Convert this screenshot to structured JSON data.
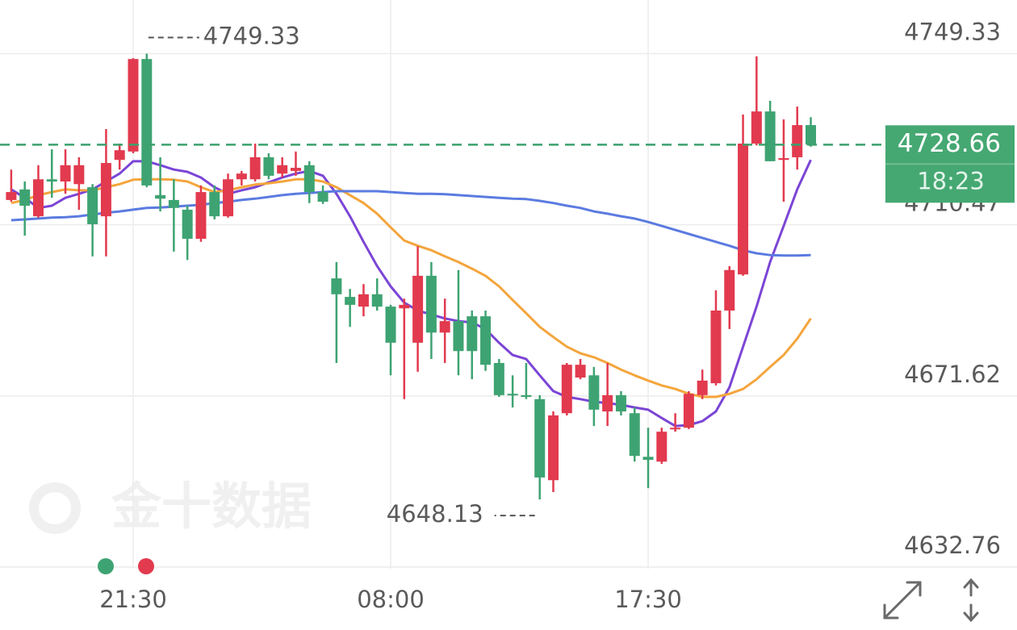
{
  "chart_data": {
    "type": "candlestick",
    "categories": [
      null,
      null,
      null,
      null,
      null,
      null,
      null,
      null,
      null,
      "21:30",
      null,
      null,
      null,
      null,
      null,
      null,
      null,
      null,
      null,
      null,
      null,
      null,
      null,
      null,
      null,
      null,
      null,
      null,
      "08:00",
      null,
      null,
      null,
      null,
      null,
      null,
      null,
      null,
      null,
      null,
      null,
      null,
      null,
      null,
      null,
      null,
      null,
      null,
      "17:30",
      null,
      null,
      null,
      null,
      null,
      null,
      null,
      null,
      null,
      null,
      null,
      null
    ],
    "open": [
      4716.1,
      4718.5,
      4712.4,
      4720.8,
      4720.3,
      4719.7,
      4719.0,
      4712.4,
      4725.2,
      4727.1,
      4748.1,
      4717.2,
      4716.1,
      4713.9,
      4707.3,
      4717.9,
      4712.4,
      4720.8,
      4720.8,
      4725.8,
      4722.1,
      4722.7,
      4724.0,
      4717.9,
      4698.3,
      4694.1,
      4691.9,
      4694.7,
      4691.9,
      4691.5,
      4683.7,
      4698.9,
      4686.0,
      4688.6,
      4689.7,
      4689.7,
      4679.1,
      4672.1,
      4671.8,
      4670.9,
      4652.5,
      4667.7,
      4675.8,
      4676.3,
      4668.1,
      4671.8,
      4667.7,
      4657.8,
      4656.7,
      4664.1,
      4664.4,
      4671.8,
      4674.5,
      4691.0,
      4699.2,
      4728.9,
      4736.2,
      4725.2,
      4725.8,
      4733.1
    ],
    "high": [
      4723.0,
      4720.3,
      4724.0,
      4727.6,
      4727.6,
      4725.8,
      4719.7,
      4732.2,
      4728.9,
      4748.3,
      4749.33,
      4725.8,
      4720.8,
      4714.8,
      4719.4,
      4719.4,
      4722.1,
      4722.7,
      4728.9,
      4726.7,
      4725.8,
      4727.1,
      4724.9,
      4719.4,
      4702.0,
      4695.9,
      4697.0,
      4698.3,
      4692.3,
      4693.7,
      4705.6,
      4702.0,
      4693.7,
      4700.2,
      4691.0,
      4691.0,
      4680.0,
      4676.3,
      4679.1,
      4671.8,
      4668.1,
      4679.1,
      4680.0,
      4678.2,
      4679.1,
      4672.7,
      4669.0,
      4664.4,
      4664.4,
      4667.7,
      4672.7,
      4677.6,
      4695.6,
      4701.1,
      4735.5,
      4748.7,
      4738.6,
      4734.4,
      4737.3,
      4734.9
    ],
    "low": [
      4715.7,
      4708.0,
      4712.1,
      4716.6,
      4717.5,
      4713.9,
      4703.3,
      4703.3,
      4723.0,
      4726.7,
      4719.0,
      4713.5,
      4704.4,
      4702.5,
      4706.6,
      4711.7,
      4712.1,
      4719.4,
      4720.3,
      4720.8,
      4721.2,
      4721.6,
      4715.4,
      4715.2,
      4679.1,
      4687.3,
      4689.7,
      4691.0,
      4676.3,
      4670.9,
      4677.1,
      4680.0,
      4679.1,
      4676.3,
      4675.4,
      4677.3,
      4671.4,
      4669.0,
      4670.9,
      4648.13,
      4649.8,
      4667.2,
      4675.4,
      4664.8,
      4664.8,
      4667.2,
      4656.7,
      4650.7,
      4656.2,
      4663.5,
      4664.1,
      4670.9,
      4674.0,
      4686.8,
      4698.9,
      4728.5,
      4724.9,
      4715.7,
      4723.0,
      4728.2
    ],
    "close": [
      4717.9,
      4714.8,
      4720.8,
      4720.3,
      4724.0,
      4724.0,
      4710.6,
      4724.5,
      4727.4,
      4748.1,
      4719.4,
      4716.4,
      4714.3,
      4707.3,
      4717.9,
      4712.4,
      4720.8,
      4722.1,
      4725.8,
      4721.6,
      4724.0,
      4723.4,
      4717.9,
      4715.7,
      4694.7,
      4692.3,
      4694.7,
      4691.9,
      4683.7,
      4692.3,
      4698.9,
      4686.0,
      4688.6,
      4681.8,
      4681.8,
      4678.7,
      4671.8,
      4671.8,
      4671.4,
      4653.1,
      4667.2,
      4678.7,
      4678.7,
      4668.5,
      4671.8,
      4668.1,
      4658.0,
      4657.1,
      4663.5,
      4664.4,
      4672.1,
      4675.1,
      4691.0,
      4700.2,
      4728.9,
      4736.2,
      4724.9,
      4725.6,
      4733.1,
      4728.66
    ],
    "up_color": "#e23a4e",
    "down_color": "#3ea372",
    "lines": [
      {
        "color": "#7b45d6",
        "values": [
          4718.5,
          4716.6,
          4714.3,
          4714.8,
          4716.6,
          4717.5,
          4718.5,
          4720.3,
          4722.1,
          4724.9,
          4724.9,
          4724.0,
          4723.0,
          4722.5,
          4721.2,
          4719.0,
          4717.5,
          4718.3,
          4719.0,
          4720.1,
          4721.2,
          4722.1,
          4722.7,
          4721.6,
          4717.5,
          4712.4,
          4706.6,
          4701.1,
          4696.5,
          4692.8,
          4691.0,
          4690.1,
          4689.2,
          4688.6,
          4688.3,
          4686.8,
          4683.7,
          4680.9,
          4680.0,
          4676.3,
          4672.7,
          4671.4,
          4670.9,
          4670.3,
          4670.0,
          4669.6,
          4669.0,
          4668.5,
          4666.6,
          4664.8,
          4665.0,
          4665.9,
          4668.1,
          4673.6,
          4682.8,
          4691.9,
          4702.0,
          4710.2,
          4718.5,
          4725.2
        ]
      },
      {
        "color": "#f4a53c",
        "values": [
          4715.4,
          4716.1,
          4717.2,
          4717.9,
          4718.5,
          4718.3,
          4718.3,
          4719.0,
          4719.7,
          4720.7,
          4720.8,
          4720.8,
          4720.7,
          4720.3,
          4719.0,
          4717.9,
          4718.3,
          4719.0,
          4719.6,
          4719.9,
          4720.3,
          4720.8,
          4720.8,
          4720.3,
          4719.0,
          4717.2,
          4715.4,
          4713.0,
          4709.9,
          4706.9,
          4705.7,
          4704.7,
          4703.3,
          4702.0,
          4700.5,
          4698.9,
          4696.5,
          4693.4,
          4690.4,
          4687.3,
          4685.0,
          4682.8,
          4681.3,
          4680.4,
          4679.1,
          4677.6,
          4676.3,
          4675.1,
          4674.0,
          4673.2,
          4672.1,
          4671.4,
          4671.4,
          4672.1,
          4673.2,
          4675.4,
          4678.2,
          4680.9,
          4684.6,
          4689.2
        ]
      },
      {
        "color": "#5b7be0",
        "values": [
          4711.5,
          4711.7,
          4711.9,
          4712.1,
          4712.2,
          4712.4,
          4712.8,
          4713.2,
          4713.5,
          4713.9,
          4714.3,
          4714.4,
          4714.6,
          4714.8,
          4715.0,
          4715.4,
          4715.7,
          4716.1,
          4716.4,
          4716.8,
          4717.2,
          4717.5,
          4717.7,
          4717.9,
          4718.1,
          4718.1,
          4718.1,
          4718.1,
          4717.9,
          4717.7,
          4717.5,
          4717.5,
          4717.4,
          4717.2,
          4717.0,
          4716.8,
          4716.6,
          4716.4,
          4716.3,
          4715.9,
          4715.4,
          4714.8,
          4714.3,
          4713.5,
          4713.0,
          4712.4,
          4711.9,
          4711.1,
          4710.2,
          4709.3,
          4708.4,
          4707.5,
          4706.6,
          4705.7,
          4704.7,
          4704.0,
          4703.6,
          4703.5,
          4703.5,
          4703.6
        ]
      }
    ],
    "ylim": [
      4632.4,
      4761.5
    ],
    "yticks": [
      4632.76,
      4671.62,
      4710.47,
      4749.33
    ],
    "grid": true,
    "last_price": 4728.66,
    "countdown": "18:23",
    "price_line_color": "#3ba16d",
    "watermark": "金十数据"
  }
}
